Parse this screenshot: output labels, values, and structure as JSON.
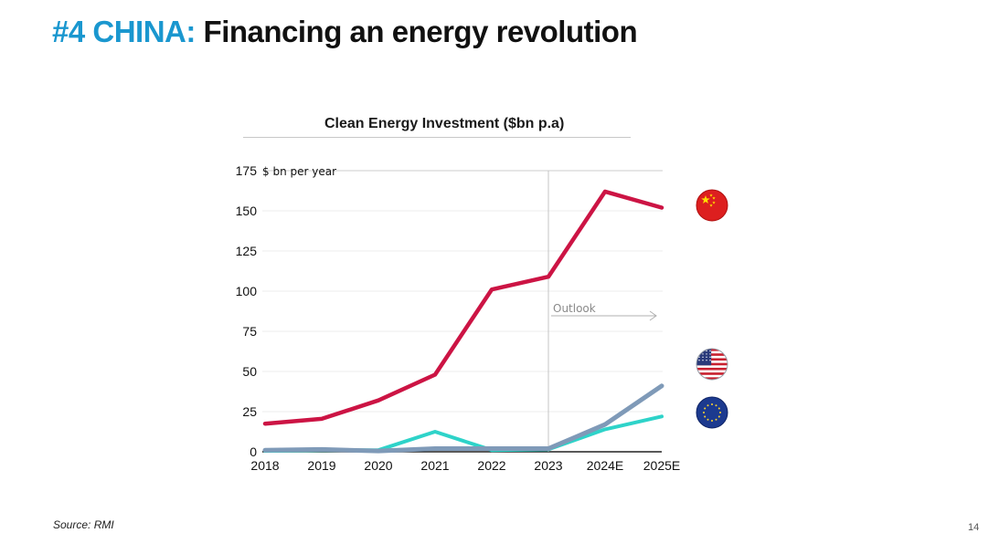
{
  "slide": {
    "title_accent": "#4 CHINA:",
    "title_main": "Financing an energy revolution",
    "source": "Source: RMI",
    "page_number": "14"
  },
  "colors": {
    "accent": "#1a97cf",
    "china": "#cc1444",
    "usa": "#2ed3c9",
    "eu": "#7f9ab8"
  },
  "chart_data": {
    "type": "line",
    "title": "Clean Energy Investment ($bn p.a)",
    "ylabel": "$ bn per year",
    "xlabel": "",
    "categories": [
      "2018",
      "2019",
      "2020",
      "2021",
      "2022",
      "2023",
      "2024E",
      "2025E"
    ],
    "ylim": [
      0,
      175
    ],
    "yticks": [
      0,
      25,
      50,
      75,
      100,
      125,
      150,
      175
    ],
    "grid": true,
    "annotation": {
      "label": "Outlook",
      "from_category": "2023"
    },
    "series": [
      {
        "name": "China",
        "flag": "china-flag-icon",
        "values": [
          17.5,
          20.5,
          32,
          48,
          101,
          109,
          162,
          152
        ]
      },
      {
        "name": "United States",
        "flag": "usa-flag-icon",
        "values": [
          0.5,
          1,
          1,
          12.5,
          1,
          1.5,
          14,
          22
        ]
      },
      {
        "name": "European Union",
        "flag": "eu-flag-icon",
        "values": [
          1,
          1.5,
          0.5,
          2,
          2,
          2,
          17,
          41
        ]
      }
    ]
  }
}
